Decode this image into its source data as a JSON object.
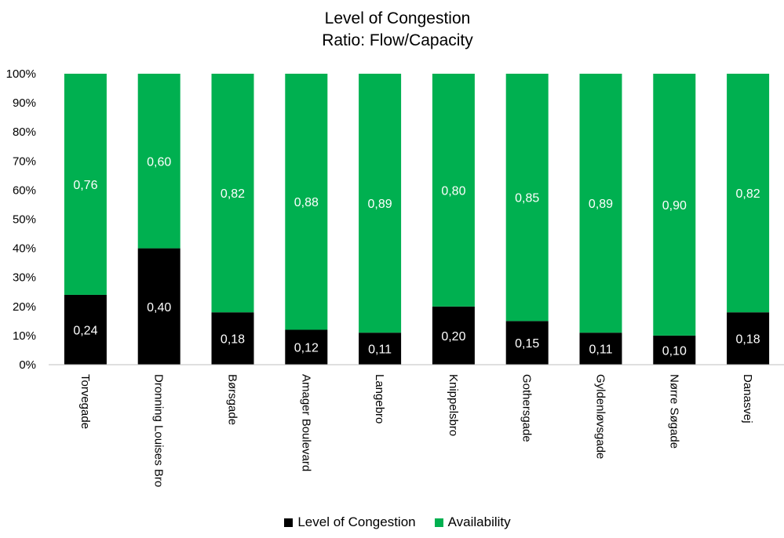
{
  "chart_data": {
    "type": "bar",
    "stacked": true,
    "title": "Level of Congestion",
    "subtitle": "Ratio: Flow/Capacity",
    "categories": [
      "Torvegade",
      "Dronning Louises Bro",
      "Børsgade",
      "Amager Boulevard",
      "Langebro",
      "Knippelsbro",
      "Gothersgade",
      "Gyldenløvsgade",
      "Nørre Søgade",
      "Danasvej"
    ],
    "series": [
      {
        "name": "Level of Congestion",
        "color": "#000000",
        "values": [
          0.24,
          0.4,
          0.18,
          0.12,
          0.11,
          0.2,
          0.15,
          0.11,
          0.1,
          0.18
        ],
        "labels": [
          "0,24",
          "0,40",
          "0,18",
          "0,12",
          "0,11",
          "0,20",
          "0,15",
          "0,11",
          "0,10",
          "0,18"
        ]
      },
      {
        "name": "Availability",
        "color": "#00b050",
        "values": [
          0.76,
          0.6,
          0.82,
          0.88,
          0.89,
          0.8,
          0.85,
          0.89,
          0.9,
          0.82
        ],
        "labels": [
          "0,76",
          "0,60",
          "0,82",
          "0,88",
          "0,89",
          "0,80",
          "0,85",
          "0,89",
          "0,90",
          "0,82"
        ]
      }
    ],
    "yticks": [
      "0%",
      "10%",
      "20%",
      "30%",
      "40%",
      "50%",
      "60%",
      "70%",
      "80%",
      "90%",
      "100%"
    ],
    "ylim": [
      0,
      1
    ],
    "grid": false,
    "legend_position": "bottom"
  }
}
